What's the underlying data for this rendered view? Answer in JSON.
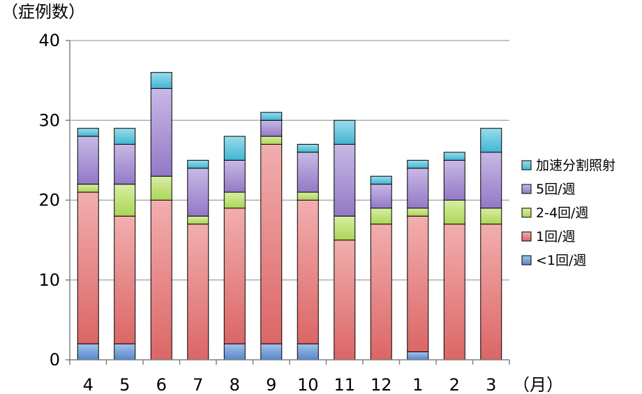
{
  "chart_data": {
    "type": "bar",
    "stacked": true,
    "ylabel": "（症例数）",
    "xlabel_unit": "（月）",
    "ylim": [
      0,
      40
    ],
    "yticks": [
      0,
      10,
      20,
      30,
      40
    ],
    "grid": true,
    "legend_position": "right",
    "categories": [
      "4",
      "5",
      "6",
      "7",
      "8",
      "9",
      "10",
      "11",
      "12",
      "1",
      "2",
      "3"
    ],
    "series": [
      {
        "name": "<1回/週",
        "color": "#5b8fd8",
        "values": [
          2,
          2,
          0,
          0,
          2,
          2,
          2,
          0,
          0,
          1,
          0,
          0
        ]
      },
      {
        "name": "1回/週",
        "color": "#e86b6b",
        "values": [
          19,
          16,
          20,
          17,
          17,
          25,
          18,
          15,
          17,
          17,
          17,
          17
        ]
      },
      {
        "name": "2-4回/週",
        "color": "#b6e05a",
        "values": [
          1,
          4,
          3,
          1,
          2,
          1,
          1,
          3,
          2,
          1,
          3,
          2
        ]
      },
      {
        "name": "5回/週",
        "color": "#9b7fd0",
        "values": [
          6,
          5,
          11,
          6,
          4,
          2,
          5,
          9,
          3,
          5,
          5,
          7
        ]
      },
      {
        "name": "加速分割照射",
        "color": "#45c0dc",
        "values": [
          1,
          2,
          2,
          1,
          3,
          1,
          1,
          3,
          1,
          1,
          1,
          3
        ]
      }
    ]
  }
}
